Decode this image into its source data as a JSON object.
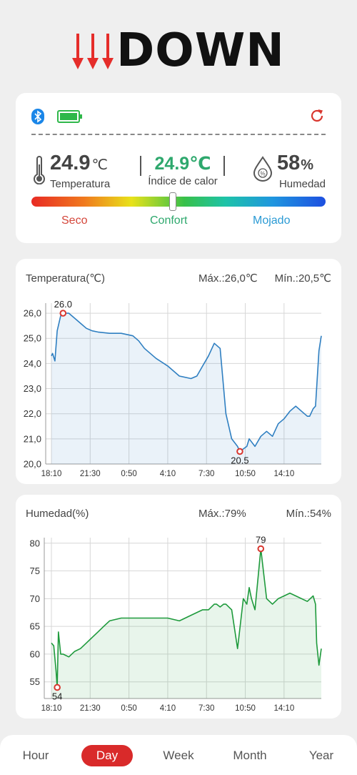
{
  "brand": {
    "name": "DOWN"
  },
  "device": {
    "temperature_value": "24.9",
    "temperature_unit": "℃",
    "temperature_label": "Temperatura",
    "heat_index_value": "24.9℃",
    "heat_index_label": "Índice de calor",
    "humidity_value": "58",
    "humidity_unit": "%",
    "humidity_label": "Humedad",
    "comfort_position": 0.48,
    "zones": {
      "dry": "Seco",
      "comfort": "Confort",
      "wet": "Mojado"
    }
  },
  "temp_chart": {
    "title": "Temperatura(℃)",
    "max_label": "Máx.:26,0℃",
    "min_label": "Mín.:20,5℃"
  },
  "hum_chart": {
    "title": "Humedad(%)",
    "max_label": "Máx.:79%",
    "min_label": "Mín.:54%"
  },
  "nav": {
    "hour": "Hour",
    "day": "Day",
    "week": "Week",
    "month": "Month",
    "year": "Year"
  },
  "colors": {
    "accent": "#d92a2a",
    "temp_line": "#2f7fc1",
    "hum_line": "#1e9a3c",
    "comfort": "#2ea86d"
  },
  "chart_data": [
    {
      "type": "line",
      "title": "Temperatura(℃)",
      "xticks": [
        "18:10",
        "21:30",
        "0:50",
        "4:10",
        "7:30",
        "10:50",
        "14:10"
      ],
      "ylim": [
        20.0,
        26.4
      ],
      "yticks": [
        "20,0",
        "21,0",
        "22,0",
        "23,0",
        "24,0",
        "25,0",
        "26,0"
      ],
      "ytick_values": [
        20,
        21,
        22,
        23,
        24,
        25,
        26
      ],
      "x_hours": [
        0,
        0.1,
        0.3,
        0.5,
        0.8,
        1,
        1.5,
        2,
        2.5,
        3,
        3.5,
        4,
        5,
        6,
        7,
        7.5,
        8,
        9,
        10,
        11,
        12,
        12.5,
        13,
        13.5,
        14,
        14.5,
        15,
        15.5,
        16,
        16.2,
        16.5,
        16.8,
        17,
        17.5,
        18,
        18.5,
        19,
        19.5,
        20,
        20.5,
        21,
        21.5,
        22,
        22.2,
        22.5,
        22.7,
        23,
        23.2
      ],
      "values": [
        24.3,
        24.4,
        24.1,
        25.3,
        25.9,
        26.0,
        26.0,
        25.8,
        25.6,
        25.4,
        25.3,
        25.25,
        25.2,
        25.2,
        25.1,
        24.9,
        24.6,
        24.2,
        23.9,
        23.5,
        23.4,
        23.5,
        23.9,
        24.3,
        24.8,
        24.6,
        22.0,
        21.0,
        20.7,
        20.5,
        20.6,
        20.7,
        21.0,
        20.7,
        21.1,
        21.3,
        21.1,
        21.6,
        21.8,
        22.1,
        22.3,
        22.1,
        21.9,
        21.9,
        22.2,
        22.3,
        24.5,
        25.1
      ],
      "series": [
        {
          "name": "",
          "color": "#2f7fc1"
        }
      ],
      "markers": [
        {
          "label": "26.0",
          "x_hour": 1.0,
          "value": 26.0,
          "position": "above"
        },
        {
          "label": "20.5",
          "x_hour": 16.2,
          "value": 20.5,
          "position": "below"
        }
      ],
      "xlabel": "",
      "ylabel": "",
      "grid": true
    },
    {
      "type": "line",
      "title": "Humedad(%)",
      "xticks": [
        "18:10",
        "21:30",
        "0:50",
        "4:10",
        "7:30",
        "10:50",
        "14:10"
      ],
      "ylim": [
        52,
        81
      ],
      "yticks": [
        "55",
        "60",
        "65",
        "70",
        "75",
        "80"
      ],
      "ytick_values": [
        55,
        60,
        65,
        70,
        75,
        80
      ],
      "x_hours": [
        0,
        0.2,
        0.4,
        0.5,
        0.6,
        0.8,
        1,
        1.5,
        2,
        2.5,
        3,
        3.5,
        4,
        4.5,
        5,
        6,
        7,
        8,
        9,
        10,
        11,
        11.5,
        12,
        13,
        13.5,
        14,
        14.2,
        14.5,
        14.8,
        15,
        15.5,
        16,
        16.5,
        16.8,
        17,
        17.2,
        17.5,
        18,
        18.5,
        19,
        19.5,
        20,
        20.5,
        21,
        22,
        22.5,
        22.7,
        22.8,
        23,
        23.2
      ],
      "values": [
        62,
        61.5,
        57,
        54,
        64,
        60,
        60,
        59.5,
        60.5,
        61,
        62,
        63,
        64,
        65,
        66,
        66.5,
        66.5,
        66.5,
        66.5,
        66.5,
        66,
        66.5,
        67,
        68,
        68,
        69,
        69,
        68.5,
        69,
        69,
        68,
        61,
        70,
        69,
        72,
        70,
        68,
        79,
        70,
        69,
        70,
        70.5,
        71,
        70.5,
        69.5,
        70.5,
        69,
        62,
        58,
        61
      ],
      "series": [
        {
          "name": "",
          "color": "#1e9a3c"
        }
      ],
      "markers": [
        {
          "label": "79",
          "x_hour": 18.0,
          "value": 79,
          "position": "above"
        },
        {
          "label": "54",
          "x_hour": 0.5,
          "value": 54,
          "position": "below"
        }
      ],
      "xlabel": "",
      "ylabel": "",
      "grid": true
    }
  ]
}
